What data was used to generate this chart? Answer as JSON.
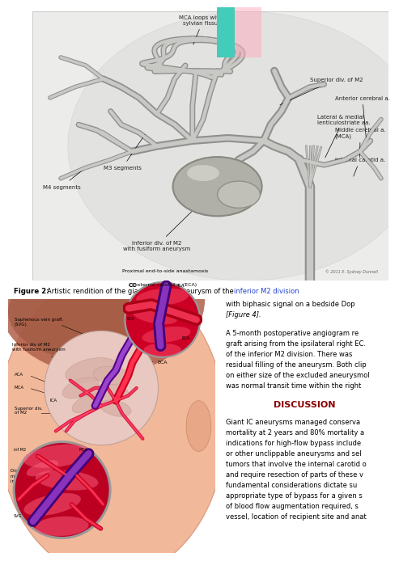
{
  "page_bg": "#ffffff",
  "top_panel_bg": "#ececea",
  "top_panel_edge": "#cccccc",
  "vessel_light": "#c8c8c4",
  "vessel_dark": "#909090",
  "aneurysm_fill": "#b8b8b0",
  "aneurysm_edge": "#888880",
  "brain_bg": "#e0e0dc",
  "label_fs": 5,
  "label_color": "#222222",
  "caption_bold": "Figure 2:",
  "caption_normal": " Artistic rendition of the giant fusiform aneurysm of the ",
  "caption_blue": "inferior M2 division",
  "caption_fs": 6,
  "teal_color": "#88ddcc",
  "pink_color": "#ffccdd",
  "right_text_lines": [
    "with biphasic signal on a bedside Dop",
    "[Figure 4]."
  ],
  "para_lines": [
    "A 5-month postoperative angiogram re",
    "graft arising from the ipsilateral right EC.",
    "of the inferior M2 division. There was",
    "residual filling of the aneurysm. Both clip",
    "on either size of the excluded aneurysmol",
    "was normal transit time within the right"
  ],
  "discussion_title": "DISCUSSION",
  "discussion_color": "#8B0000",
  "discussion_lines": [
    "Giant IC aneurysms managed conserva",
    "mortality at 2 years and 80% mortality a",
    "indications for high-flow bypass include",
    "or other unclippable aneurysms and sel",
    "tumors that involve the internal carotid o",
    "and require resection of parts of these v",
    "fundamental considerations dictate su",
    "appropriate type of bypass for a given s",
    "of blood flow augmentation required, s",
    "vessel, location of recipient site and anat"
  ],
  "proximal_label": "Proximal end-to-side anastamosis\nexternal carotid a. (ECA)",
  "bottom_labels": {
    "svg": "Saphenous vein graft\n(SVG)",
    "inf_m2": "Inferior div of M2\nwith fusiform aneurysm",
    "aca": "ACA",
    "mca": "MCA",
    "ica": "ICA",
    "sup_m2": "Superior div.\nof M2",
    "eca": "ECA",
    "distal": "Distal end-to-side anastomosis\nmiddle cerebral a. (MCA)\ninferior M2 segment"
  },
  "copyright": "© 2011 E. Sydney Dunnell"
}
